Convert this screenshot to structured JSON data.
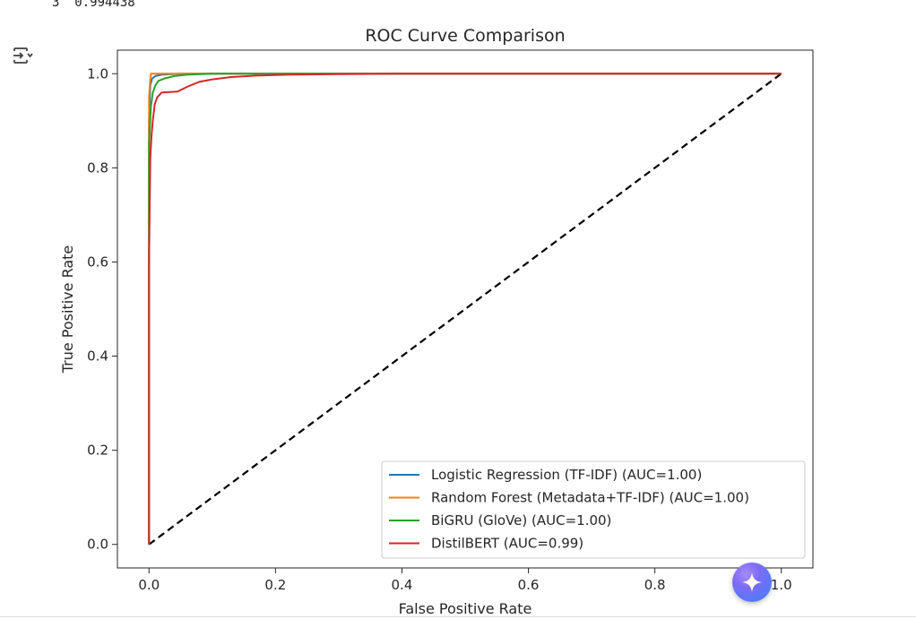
{
  "cell": {
    "output_prefix_text": "3  0.994438",
    "toggle_icon": "output-toggle-icon",
    "assistant_icon": "gemini-sparkle-icon"
  },
  "chart_data": {
    "type": "line",
    "title": "ROC Curve Comparison",
    "xlabel": "False Positive Rate",
    "ylabel": "True Positive Rate",
    "xlim": [
      -0.05,
      1.05
    ],
    "ylim": [
      -0.05,
      1.05
    ],
    "xticks": [
      0.0,
      0.2,
      0.4,
      0.6,
      0.8,
      1.0
    ],
    "yticks": [
      0.0,
      0.2,
      0.4,
      0.6,
      0.8,
      1.0
    ],
    "xtick_labels": [
      "0.0",
      "0.2",
      "0.4",
      "0.6",
      "0.8",
      "1.0"
    ],
    "ytick_labels": [
      "0.0",
      "0.2",
      "0.4",
      "0.6",
      "0.8",
      "1.0"
    ],
    "grid": false,
    "legend_position": "lower-right",
    "series": [
      {
        "name": "Logistic Regression (TF-IDF) (AUC=1.00)",
        "color": "#1f77b4",
        "x": [
          0,
          0,
          0.002,
          0.005,
          0.01,
          0.02,
          0.05,
          1.0
        ],
        "y": [
          0,
          0.9,
          0.975,
          0.99,
          0.995,
          0.998,
          1.0,
          1.0
        ]
      },
      {
        "name": "Random Forest (Metadata+TF-IDF) (AUC=1.00)",
        "color": "#ff7f0e",
        "x": [
          0,
          0,
          0.002,
          0.003,
          1.0
        ],
        "y": [
          0,
          0.95,
          0.99,
          1.0,
          1.0
        ]
      },
      {
        "name": "BiGRU (GloVe) (AUC=1.00)",
        "color": "#2ca02c",
        "x": [
          0,
          0,
          0.003,
          0.006,
          0.01,
          0.015,
          0.025,
          0.04,
          0.06,
          0.1,
          0.2,
          1.0
        ],
        "y": [
          0,
          0.85,
          0.93,
          0.96,
          0.975,
          0.985,
          0.99,
          0.995,
          0.998,
          1.0,
          1.0,
          1.0
        ]
      },
      {
        "name": "DistilBERT (AUC=0.99)",
        "color": "#d62728",
        "x": [
          0,
          0,
          0.002,
          0.004,
          0.006,
          0.009,
          0.013,
          0.02,
          0.045,
          0.06,
          0.08,
          0.1,
          0.13,
          0.17,
          0.22,
          0.3,
          0.4,
          1.0
        ],
        "y": [
          0,
          0.6,
          0.82,
          0.87,
          0.9,
          0.935,
          0.95,
          0.96,
          0.962,
          0.972,
          0.983,
          0.988,
          0.993,
          0.996,
          0.998,
          0.999,
          1.0,
          1.0
        ]
      }
    ],
    "reference_line": {
      "x": [
        0,
        1
      ],
      "y": [
        0,
        1
      ],
      "color": "#000000",
      "style": "dashed"
    }
  }
}
